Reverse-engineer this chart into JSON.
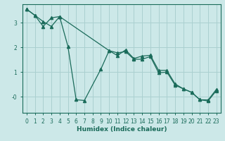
{
  "xlabel": "Humidex (Indice chaleur)",
  "bg_color": "#cce8e8",
  "line_color": "#1a6b5a",
  "grid_color": "#aad0d0",
  "xlim": [
    -0.5,
    23.5
  ],
  "ylim": [
    -0.65,
    3.75
  ],
  "xticks": [
    0,
    1,
    2,
    3,
    4,
    5,
    6,
    7,
    8,
    9,
    10,
    11,
    12,
    13,
    14,
    15,
    16,
    17,
    18,
    19,
    20,
    21,
    22,
    23
  ],
  "yticks": [
    0,
    1,
    2,
    3
  ],
  "ytick_labels": [
    "-0",
    "1",
    "2",
    "3"
  ],
  "line1_x": [
    0,
    1,
    2,
    3,
    4,
    5,
    6,
    7,
    9,
    10,
    11,
    12,
    13,
    14,
    15,
    16,
    17,
    18,
    19,
    20,
    21,
    22,
    23
  ],
  "line1_y": [
    3.55,
    3.3,
    2.85,
    3.2,
    3.25,
    2.05,
    -0.12,
    -0.15,
    1.12,
    1.87,
    1.67,
    1.9,
    1.55,
    1.65,
    1.68,
    1.07,
    1.07,
    0.52,
    0.32,
    0.18,
    -0.12,
    -0.13,
    0.3
  ],
  "line2_x": [
    0,
    1,
    2,
    3,
    4,
    10,
    11,
    12,
    13,
    14,
    15,
    16,
    17,
    18,
    19,
    20,
    21,
    22,
    23
  ],
  "line2_y": [
    3.55,
    3.3,
    3.05,
    2.85,
    3.25,
    1.87,
    1.78,
    1.83,
    1.52,
    1.52,
    1.63,
    0.97,
    1.0,
    0.47,
    0.32,
    0.18,
    -0.12,
    -0.17,
    0.25
  ]
}
